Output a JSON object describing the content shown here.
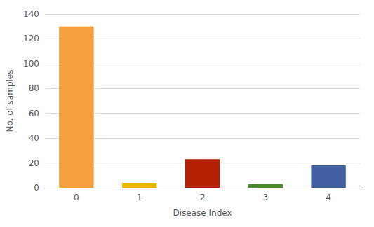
{
  "chart_data": {
    "type": "bar",
    "categories": [
      "0",
      "1",
      "2",
      "3",
      "4"
    ],
    "values": [
      130,
      4,
      23,
      3,
      18
    ],
    "colors": [
      "#F4A040",
      "#E8B800",
      "#B22000",
      "#4C8A30",
      "#3F5FA0"
    ],
    "xlabel": "Disease Index",
    "ylabel": "No. of samples",
    "ylim": [
      0,
      140
    ],
    "yticks": [
      0,
      20,
      40,
      60,
      80,
      100,
      120,
      140
    ],
    "grid": true
  }
}
